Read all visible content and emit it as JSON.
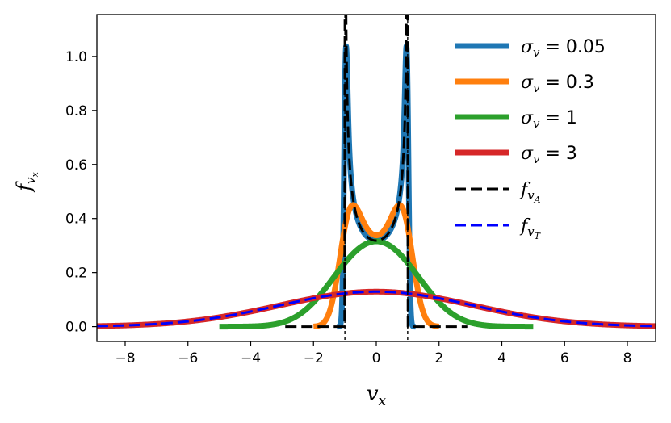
{
  "chart_data": {
    "type": "line",
    "xlabel": "v",
    "xlabel_sub": "x",
    "ylabel": "f",
    "ylabel_sub": "v",
    "ylabel_subsub": "x",
    "xlim": [
      -8.9,
      8.9
    ],
    "ylim": [
      -0.055,
      1.155
    ],
    "xticks": [
      "−8",
      "−6",
      "−4",
      "−2",
      "0",
      "2",
      "4",
      "6",
      "8"
    ],
    "xtick_values": [
      -8,
      -6,
      -4,
      -2,
      0,
      2,
      4,
      6,
      8
    ],
    "yticks": [
      "0.0",
      "0.2",
      "0.4",
      "0.6",
      "0.8",
      "1.0"
    ],
    "ytick_values": [
      0.0,
      0.2,
      0.4,
      0.6,
      0.8,
      1.0
    ],
    "grid": false,
    "legend_position": "top-right",
    "vA": 1.0,
    "series": [
      {
        "name": "σv = 0.05",
        "label_main": "σ",
        "label_sub": "v",
        "label_rest": " = 0.05",
        "sigma": 0.05,
        "x_range": [
          -1.25,
          1.25
        ],
        "color": "#1f77b4",
        "style": "solid",
        "width": 7
      },
      {
        "name": "σv = 0.3",
        "label_main": "σ",
        "label_sub": "v",
        "label_rest": " = 0.3",
        "sigma": 0.3,
        "x_range": [
          -2.0,
          2.0
        ],
        "color": "#ff7f0e",
        "style": "solid",
        "width": 7
      },
      {
        "name": "σv = 1",
        "label_main": "σ",
        "label_sub": "v",
        "label_rest": " = 1",
        "sigma": 1.0,
        "x_range": [
          -5.0,
          5.0
        ],
        "color": "#2ca02c",
        "style": "solid",
        "width": 7
      },
      {
        "name": "σv = 3",
        "label_main": "σ",
        "label_sub": "v",
        "label_rest": " = 3",
        "sigma": 3.0,
        "x_range": [
          -8.9,
          8.9
        ],
        "color": "#d62728",
        "style": "solid",
        "width": 7
      },
      {
        "name": "fvA",
        "label_main": "f",
        "label_sub": "v",
        "label_subsub": "A",
        "label_rest": "",
        "kind": "arcsine",
        "x_range": [
          -2.9,
          2.9
        ],
        "color": "#000000",
        "style": "dashed",
        "width": 3
      },
      {
        "name": "fvT",
        "label_main": "f",
        "label_sub": "v",
        "label_subsub": "T",
        "label_rest": "",
        "kind": "gaussian",
        "sigma_total": 3.0824,
        "x_range": [
          -8.9,
          8.9
        ],
        "color": "#0000ff",
        "style": "dashed",
        "width": 3
      }
    ],
    "vlines": [
      {
        "x": -1.0,
        "color": "#000000",
        "style": "dashed"
      },
      {
        "x": 1.0,
        "color": "#000000",
        "style": "dashed"
      }
    ]
  }
}
